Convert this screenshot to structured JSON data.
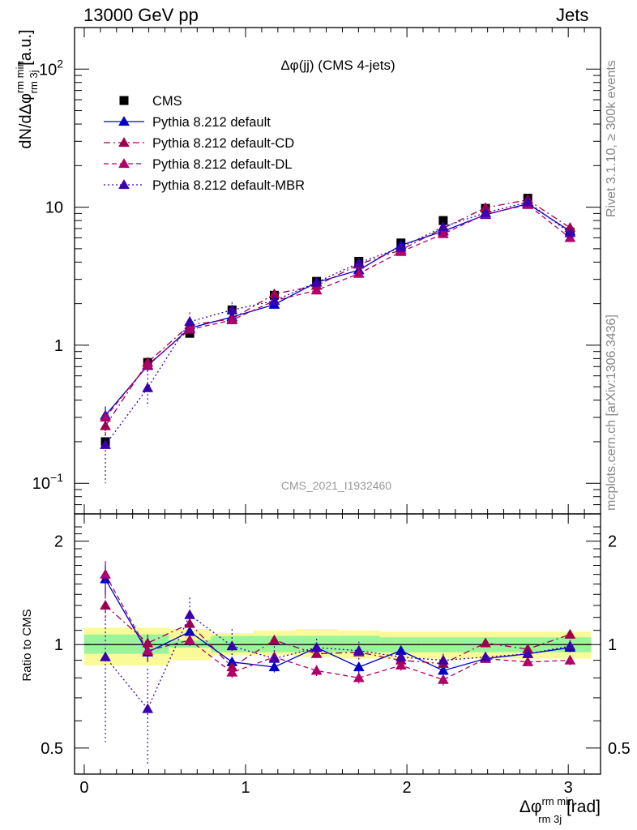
{
  "header": {
    "energy_label": "13000 GeV pp",
    "process_label": "Jets"
  },
  "side_labels": {
    "rivet": "Rivet 3.1.10, ≥ 300k events",
    "source": "mcplots.cern.ch [arXiv:1306.3436]"
  },
  "colors": {
    "cms": "#000000",
    "default": "#0000cc",
    "cd": "#a0004a",
    "dl": "#b0006a",
    "mbr": "#3a00b0",
    "band_inner": "#99f599",
    "band_outer": "#fafa99"
  },
  "chart_data": [
    {
      "type": "line",
      "panel": "main",
      "title": "Δφ(jj) (CMS 4-jets)",
      "watermark": "CMS_2021_I1932460",
      "ylabel_main": "dN/dΔφ",
      "ylabel_sup": "rm min",
      "ylabel_sub": "rm 3j",
      "ylabel_unit": "[a.u.]",
      "yscale": "log",
      "ylim": [
        0.06,
        200
      ],
      "xlim": [
        -0.06,
        3.2
      ],
      "y_ticks": [
        {
          "value": 0.1,
          "base": "10",
          "exp": "−1"
        },
        {
          "value": 1,
          "base": "1",
          "exp": ""
        },
        {
          "value": 10,
          "base": "10",
          "exp": ""
        },
        {
          "value": 100,
          "base": "10",
          "exp": "2"
        }
      ],
      "legend": [
        "CMS",
        "Pythia 8.212 default",
        "Pythia 8.212 default-CD",
        "Pythia 8.212 default-DL",
        "Pythia 8.212 default-MBR"
      ],
      "legend_position": "top-left",
      "x": [
        0.131,
        0.393,
        0.654,
        0.916,
        1.178,
        1.44,
        1.702,
        1.963,
        2.225,
        2.487,
        2.749,
        3.011
      ],
      "series": [
        {
          "name": "CMS",
          "style": "marker",
          "color": "#000000",
          "values": [
            0.2,
            0.75,
            1.22,
            1.8,
            2.3,
            2.9,
            4.05,
            5.5,
            8.0,
            9.8,
            11.6,
            6.6
          ]
        },
        {
          "name": "Pythia 8.212 default",
          "style": "solid",
          "color": "#0000cc",
          "values": [
            0.31,
            0.71,
            1.33,
            1.6,
            1.97,
            2.85,
            3.5,
            5.3,
            6.7,
            8.8,
            10.6,
            6.7
          ],
          "errors": [
            0.05,
            0.07,
            0.08,
            0.06,
            0.06,
            0.08,
            0.1,
            0.12,
            0.14,
            0.16,
            0.2,
            0.18
          ]
        },
        {
          "name": "Pythia 8.212 default-CD",
          "style": "dashdot",
          "color": "#a0004a",
          "values": [
            0.26,
            0.75,
            1.4,
            1.55,
            2.35,
            2.7,
            3.85,
            4.9,
            7.05,
            9.9,
            11.3,
            7.1
          ],
          "errors": [
            0.04,
            0.07,
            0.08,
            0.06,
            0.07,
            0.08,
            0.1,
            0.12,
            0.14,
            0.16,
            0.2,
            0.18
          ]
        },
        {
          "name": "Pythia 8.212 default-DL",
          "style": "dashed",
          "color": "#b0006a",
          "values": [
            0.3,
            0.72,
            1.3,
            1.52,
            2.1,
            2.5,
            3.3,
            4.75,
            6.4,
            8.9,
            10.4,
            6.0
          ],
          "errors": [
            0.05,
            0.07,
            0.08,
            0.06,
            0.06,
            0.08,
            0.1,
            0.12,
            0.14,
            0.16,
            0.2,
            0.18
          ]
        },
        {
          "name": "Pythia 8.212 default-MBR",
          "style": "dotted",
          "color": "#3a00b0",
          "values": [
            0.19,
            0.49,
            1.48,
            1.8,
            2.1,
            2.85,
            3.95,
            5.1,
            7.2,
            9.1,
            10.9,
            6.5
          ],
          "errors": [
            0.09,
            0.13,
            0.25,
            0.25,
            0.2,
            0.2,
            0.25,
            0.3,
            0.3,
            0.3,
            0.35,
            0.3
          ]
        }
      ]
    },
    {
      "type": "line",
      "panel": "ratio",
      "ylabel": "Ratio to CMS",
      "xlabel_main": "Δφ",
      "xlabel_sup": "rm min",
      "xlabel_sub": "rm 3j",
      "xlabel_unit": "[rad]",
      "yscale": "log",
      "ylim": [
        0.42,
        2.4
      ],
      "xlim": [
        -0.06,
        3.2
      ],
      "y_ticks": [
        {
          "value": 0.5,
          "label": "0.5"
        },
        {
          "value": 1,
          "label": "1"
        },
        {
          "value": 2,
          "label": "2"
        }
      ],
      "x_ticks": [
        {
          "value": 0,
          "label": "0"
        },
        {
          "value": 1,
          "label": "1"
        },
        {
          "value": 2,
          "label": "2"
        },
        {
          "value": 3,
          "label": "3"
        }
      ],
      "x": [
        0.131,
        0.393,
        0.654,
        0.916,
        1.178,
        1.44,
        1.702,
        1.963,
        2.225,
        2.487,
        2.749,
        3.011
      ],
      "bin_edges": [
        0,
        0.262,
        0.524,
        0.785,
        1.047,
        1.309,
        1.571,
        1.833,
        2.094,
        2.356,
        2.618,
        2.88,
        3.142
      ],
      "band_inner_lo": [
        0.94,
        0.94,
        0.98,
        0.95,
        0.95,
        0.95,
        0.95,
        0.95,
        0.95,
        0.95,
        0.95,
        0.95
      ],
      "band_inner_hi": [
        1.07,
        1.07,
        1.03,
        1.06,
        1.06,
        1.06,
        1.06,
        1.05,
        1.05,
        1.05,
        1.05,
        1.05
      ],
      "band_outer_lo": [
        0.87,
        0.87,
        0.9,
        0.93,
        0.93,
        0.92,
        0.91,
        0.91,
        0.91,
        0.91,
        0.91,
        0.91
      ],
      "band_outer_hi": [
        1.12,
        1.12,
        1.11,
        1.08,
        1.1,
        1.11,
        1.1,
        1.09,
        1.09,
        1.09,
        1.09,
        1.09
      ],
      "series": [
        {
          "name": "Pythia 8.212 default",
          "style": "solid",
          "color": "#0000cc",
          "values": [
            1.55,
            0.95,
            1.09,
            0.89,
            0.86,
            0.98,
            0.86,
            0.96,
            0.84,
            0.91,
            0.94,
            0.98
          ],
          "errors": [
            0.15,
            0.06,
            0.05,
            0.03,
            0.03,
            0.03,
            0.03,
            0.03,
            0.03,
            0.02,
            0.02,
            0.03
          ]
        },
        {
          "name": "Pythia 8.212 default-CD",
          "style": "dashdot",
          "color": "#a0004a",
          "values": [
            1.3,
            1.01,
            1.15,
            0.86,
            1.03,
            0.94,
            0.95,
            0.9,
            0.88,
            1.01,
            0.97,
            1.07
          ],
          "errors": [
            0.12,
            0.06,
            0.05,
            0.03,
            0.03,
            0.03,
            0.03,
            0.03,
            0.03,
            0.02,
            0.02,
            0.03
          ]
        },
        {
          "name": "Pythia 8.212 default-DL",
          "style": "dashed",
          "color": "#b0006a",
          "values": [
            1.6,
            0.96,
            1.03,
            0.83,
            0.92,
            0.84,
            0.8,
            0.87,
            0.79,
            0.91,
            0.89,
            0.9
          ],
          "errors": [
            0.15,
            0.06,
            0.05,
            0.03,
            0.03,
            0.03,
            0.03,
            0.03,
            0.03,
            0.02,
            0.02,
            0.03
          ]
        },
        {
          "name": "Pythia 8.212 default-MBR",
          "style": "dotted",
          "color": "#3a00b0",
          "values": [
            0.92,
            0.65,
            1.22,
            0.99,
            0.91,
            0.98,
            0.96,
            0.92,
            0.9,
            0.92,
            0.94,
            0.99
          ],
          "errors": [
            0.4,
            0.2,
            0.15,
            0.12,
            0.08,
            0.06,
            0.06,
            0.05,
            0.04,
            0.03,
            0.03,
            0.04
          ]
        }
      ]
    }
  ]
}
